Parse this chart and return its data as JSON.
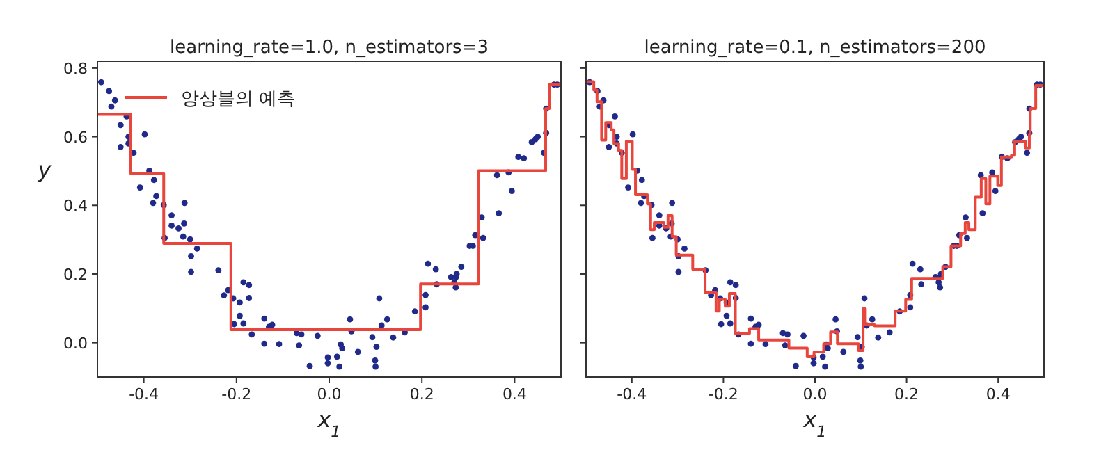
{
  "chart_data": [
    {
      "type": "scatter",
      "title": "learning_rate=1.0, n_estimators=3",
      "xlabel": "x$_{1}$",
      "ylabel": "y",
      "xlim": [
        -0.5,
        0.5
      ],
      "ylim": [
        -0.1,
        0.82
      ],
      "xticks": [
        -0.4,
        -0.2,
        {
          "value": 0,
          "label": "0.0"
        },
        0.2,
        0.4
      ],
      "yticks": [
        {
          "value": 0,
          "label": "0.0"
        },
        0.2,
        0.4,
        0.6,
        0.8
      ],
      "grid": false,
      "legend": "top left",
      "series": [
        {
          "color": "#1f2a8a",
          "marker": "circle",
          "x": [
            -0.492,
            -0.475,
            -0.47,
            -0.462,
            -0.45,
            -0.437,
            -0.433,
            -0.433,
            -0.45,
            -0.422,
            -0.398,
            -0.388,
            -0.378,
            -0.408,
            -0.373,
            -0.38,
            -0.357,
            -0.312,
            -0.34,
            -0.34,
            -0.325,
            -0.313,
            -0.355,
            -0.315,
            -0.3,
            -0.298,
            -0.285,
            -0.298,
            -0.239,
            -0.227,
            -0.218,
            -0.207,
            -0.193,
            -0.185,
            -0.173,
            -0.173,
            -0.193,
            -0.205,
            -0.185,
            -0.167,
            -0.14,
            -0.13,
            -0.123,
            -0.14,
            -0.108,
            -0.07,
            -0.06,
            -0.065,
            -0.025,
            -0.042,
            -0.003,
            -0.003,
            0.017,
            0.022,
            0.025,
            0.028,
            0.045,
            0.048,
            0.062,
            0.093,
            0.102,
            0.099,
            0.1,
            0.108,
            0.113,
            0.125,
            0.138,
            0.163,
            0.185,
            0.208,
            0.208,
            0.213,
            0.23,
            0.232,
            0.263,
            0.273,
            0.273,
            0.275,
            0.27,
            0.285,
            0.303,
            0.31,
            0.315,
            0.332,
            0.329,
            0.366,
            0.362,
            0.387,
            0.394,
            0.408,
            0.42,
            0.437,
            0.445,
            0.45,
            0.463,
            0.468,
            0.468,
            0.485,
            0.492
          ],
          "values": [
            0.759,
            0.733,
            0.688,
            0.706,
            0.634,
            0.659,
            0.6,
            0.58,
            0.57,
            0.553,
            0.607,
            0.501,
            0.474,
            0.452,
            0.427,
            0.407,
            0.401,
            0.407,
            0.371,
            0.341,
            0.333,
            0.347,
            0.305,
            0.309,
            0.301,
            0.252,
            0.274,
            0.206,
            0.211,
            0.138,
            0.153,
            0.129,
            0.117,
            0.176,
            0.168,
            0.13,
            0.078,
            0.054,
            0.056,
            0.024,
            0.07,
            0.046,
            0.052,
            -0.003,
            -0.004,
            0.028,
            0.024,
            -0.008,
            0.02,
            -0.068,
            -0.043,
            -0.06,
            -0.041,
            -0.07,
            -0.005,
            -0.016,
            0.068,
            0.033,
            -0.027,
            0.016,
            -0.012,
            -0.052,
            -0.07,
            0.129,
            0.05,
            0.068,
            0.015,
            0.03,
            0.091,
            0.103,
            0.139,
            0.23,
            0.214,
            0.17,
            0.191,
            0.19,
            0.161,
            0.2,
            0.176,
            0.221,
            0.282,
            0.282,
            0.313,
            0.305,
            0.365,
            0.377,
            0.488,
            0.496,
            0.442,
            0.541,
            0.537,
            0.584,
            0.593,
            0.6,
            0.553,
            0.611,
            0.682,
            0.752,
            0.752
          ]
        },
        {
          "type": "step",
          "name": "앙상블의 예측",
          "color": "#e8463c",
          "line_style": "solid",
          "x": [
            -0.5,
            -0.428,
            -0.357,
            -0.212,
            0.197,
            0.322,
            0.467,
            0.475,
            0.5
          ],
          "values": [
            0.665,
            0.492,
            0.289,
            0.038,
            0.171,
            0.501,
            0.682,
            0.753,
            0.753
          ]
        }
      ]
    },
    {
      "type": "scatter",
      "title": "learning_rate=0.1, n_estimators=200",
      "xlabel": "x$_{1}$",
      "xlim": [
        -0.5,
        0.5
      ],
      "ylim": [
        -0.1,
        0.82
      ],
      "xticks": [
        -0.4,
        -0.2,
        {
          "value": 0,
          "label": "0.0"
        },
        0.2,
        0.4
      ],
      "yticks": [
        0,
        0.2,
        0.4,
        0.6,
        0.8
      ],
      "tick_labels": "x",
      "grid": false,
      "legend": false,
      "series": [
        {
          "color": "#1f2a8a",
          "marker": "circle",
          "x": [
            -0.492,
            -0.475,
            -0.47,
            -0.462,
            -0.45,
            -0.437,
            -0.433,
            -0.433,
            -0.45,
            -0.422,
            -0.398,
            -0.388,
            -0.378,
            -0.408,
            -0.373,
            -0.38,
            -0.357,
            -0.312,
            -0.34,
            -0.34,
            -0.325,
            -0.313,
            -0.355,
            -0.315,
            -0.3,
            -0.298,
            -0.285,
            -0.298,
            -0.239,
            -0.227,
            -0.218,
            -0.207,
            -0.193,
            -0.185,
            -0.173,
            -0.173,
            -0.193,
            -0.205,
            -0.185,
            -0.167,
            -0.14,
            -0.13,
            -0.123,
            -0.14,
            -0.108,
            -0.07,
            -0.06,
            -0.065,
            -0.025,
            -0.042,
            -0.003,
            -0.003,
            0.017,
            0.022,
            0.025,
            0.028,
            0.045,
            0.048,
            0.062,
            0.093,
            0.102,
            0.099,
            0.1,
            0.108,
            0.113,
            0.125,
            0.138,
            0.163,
            0.185,
            0.208,
            0.208,
            0.213,
            0.23,
            0.232,
            0.263,
            0.273,
            0.273,
            0.275,
            0.27,
            0.285,
            0.303,
            0.31,
            0.315,
            0.332,
            0.329,
            0.366,
            0.362,
            0.387,
            0.394,
            0.408,
            0.42,
            0.437,
            0.445,
            0.45,
            0.463,
            0.468,
            0.468,
            0.485,
            0.492
          ],
          "values": [
            0.759,
            0.733,
            0.688,
            0.706,
            0.634,
            0.659,
            0.6,
            0.58,
            0.57,
            0.553,
            0.607,
            0.501,
            0.474,
            0.452,
            0.427,
            0.407,
            0.401,
            0.407,
            0.371,
            0.341,
            0.333,
            0.347,
            0.305,
            0.309,
            0.301,
            0.252,
            0.274,
            0.206,
            0.211,
            0.138,
            0.153,
            0.129,
            0.117,
            0.176,
            0.168,
            0.13,
            0.078,
            0.054,
            0.056,
            0.024,
            0.07,
            0.046,
            0.052,
            -0.003,
            -0.004,
            0.028,
            0.024,
            -0.008,
            0.02,
            -0.068,
            -0.043,
            -0.06,
            -0.041,
            -0.07,
            -0.005,
            -0.016,
            0.068,
            0.033,
            -0.027,
            0.016,
            -0.012,
            -0.052,
            -0.07,
            0.129,
            0.05,
            0.068,
            0.015,
            0.03,
            0.091,
            0.103,
            0.139,
            0.23,
            0.214,
            0.17,
            0.191,
            0.19,
            0.161,
            0.2,
            0.176,
            0.221,
            0.282,
            0.282,
            0.313,
            0.305,
            0.365,
            0.377,
            0.488,
            0.496,
            0.442,
            0.541,
            0.537,
            0.584,
            0.593,
            0.6,
            0.553,
            0.611,
            0.682,
            0.752,
            0.752
          ]
        },
        {
          "type": "step",
          "color": "#e8463c",
          "line_style": "solid",
          "x": [
            -0.5,
            -0.483,
            -0.476,
            -0.466,
            -0.457,
            -0.445,
            -0.439,
            -0.429,
            -0.422,
            -0.412,
            -0.399,
            -0.392,
            -0.366,
            -0.359,
            -0.351,
            -0.33,
            -0.321,
            -0.312,
            -0.303,
            -0.267,
            -0.24,
            -0.216,
            -0.209,
            -0.196,
            -0.187,
            -0.174,
            -0.143,
            -0.123,
            -0.057,
            -0.017,
            -0.002,
            0.019,
            0.034,
            0.049,
            0.095,
            0.105,
            0.11,
            0.13,
            0.175,
            0.198,
            0.211,
            0.279,
            0.297,
            0.318,
            0.328,
            0.336,
            0.35,
            0.363,
            0.373,
            0.382,
            0.399,
            0.407,
            0.429,
            0.436,
            0.46,
            0.468,
            0.47,
            0.482,
            0.5
          ],
          "values": [
            0.76,
            0.736,
            0.702,
            0.59,
            0.641,
            0.62,
            0.58,
            0.56,
            0.478,
            0.587,
            0.505,
            0.431,
            0.404,
            0.329,
            0.35,
            0.336,
            0.37,
            0.309,
            0.255,
            0.214,
            0.146,
            0.092,
            0.126,
            0.106,
            0.143,
            0.027,
            0.041,
            0.008,
            -0.016,
            -0.041,
            -0.027,
            -0.003,
            0.031,
            -0.003,
            -0.023,
            0.099,
            0.052,
            0.049,
            0.092,
            0.126,
            0.187,
            0.221,
            0.282,
            0.318,
            0.35,
            0.329,
            0.424,
            0.478,
            0.404,
            0.485,
            0.458,
            0.541,
            0.546,
            0.587,
            0.567,
            0.607,
            0.682,
            0.749,
            0.749
          ]
        }
      ]
    }
  ]
}
